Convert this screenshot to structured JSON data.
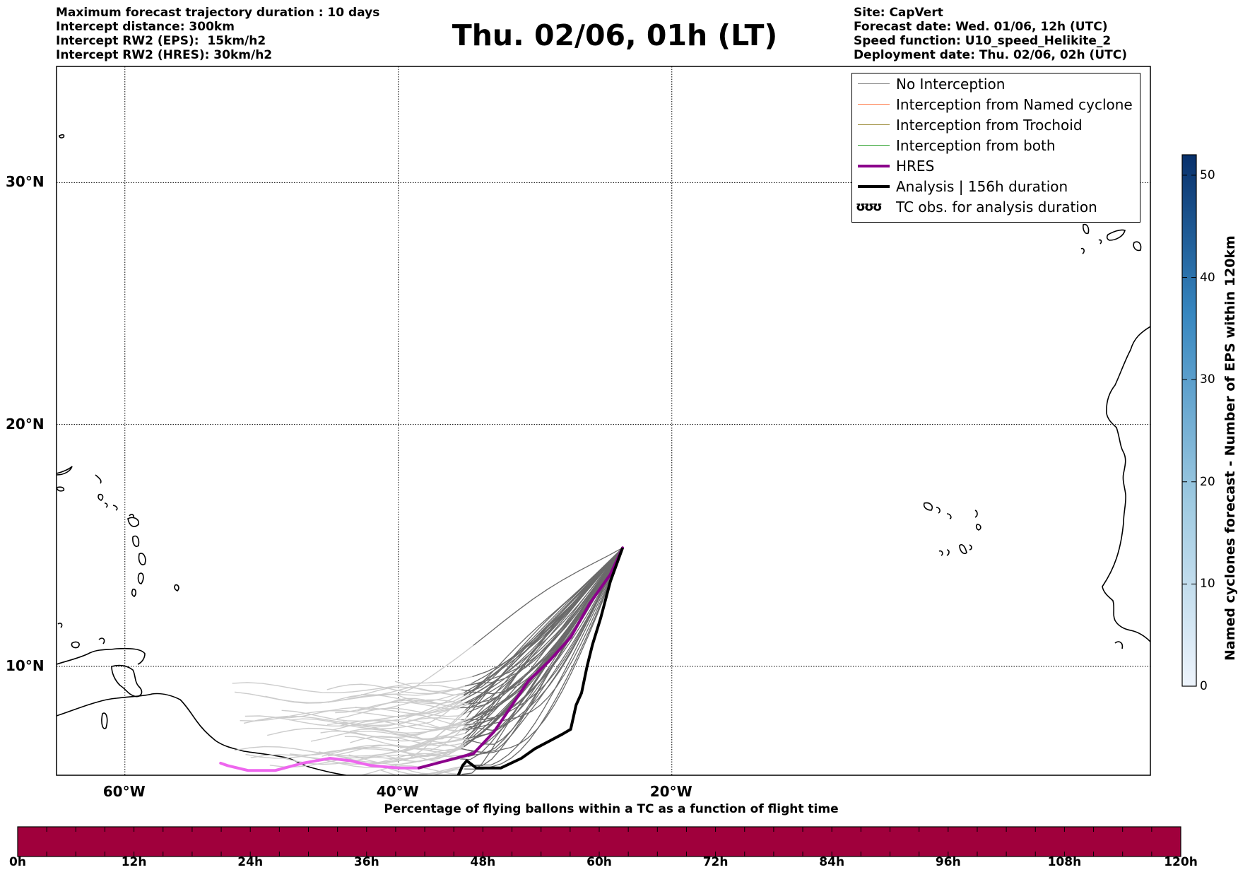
{
  "header": {
    "left": [
      "Maximum forecast trajectory duration : 10 days",
      "Intercept distance: 300km",
      "Intercept RW2 (EPS):  15km/h2",
      "Intercept RW2 (HRES): 30km/h2"
    ],
    "right": [
      "Site: CapVert",
      "Forecast date: Wed. 01/06, 12h (UTC)",
      "Speed function: U10_speed_Helikite_2",
      "Deployment date: Thu. 02/06, 02h (UTC)"
    ],
    "title": "Thu. 02/06, 01h (LT)"
  },
  "map": {
    "lon_range": [
      -65,
      15
    ],
    "lat_range": [
      5.5,
      34.8
    ],
    "lat_ticks": [
      {
        "value": 30,
        "label": "30°N"
      },
      {
        "value": 20,
        "label": "20°N"
      },
      {
        "value": 10,
        "label": "10°N"
      }
    ],
    "lon_ticks": [
      {
        "value": -60,
        "label": "60°W"
      },
      {
        "value": -40,
        "label": "40°W"
      },
      {
        "value": -20,
        "label": "20°W"
      }
    ],
    "grid": true
  },
  "legend": {
    "items": [
      {
        "label": "No Interception",
        "color": "#808080"
      },
      {
        "label": "Interception from Named cyclone",
        "color": "#ff7f50"
      },
      {
        "label": "Interception from Trochoid",
        "color": "#9b8a36"
      },
      {
        "label": "Interception from both",
        "color": "#2ca02c"
      },
      {
        "label": "HRES",
        "color": "#8b008b"
      },
      {
        "label": "Analysis | 156h duration",
        "color": "#000000"
      },
      {
        "label": "TC obs. for analysis duration",
        "glyph": "ʊʊʊ"
      }
    ]
  },
  "trajectories": {
    "origin": [
      -23.6,
      14.9
    ],
    "hres": [
      [
        -23.6,
        14.9
      ],
      [
        -24.5,
        13.8
      ],
      [
        -26,
        12.6
      ],
      [
        -27.4,
        11.2
      ],
      [
        -29,
        10.2
      ],
      [
        -30.5,
        9.4
      ],
      [
        -31.8,
        8.3
      ],
      [
        -33,
        7.3
      ],
      [
        -34.5,
        6.4
      ],
      [
        -36.5,
        6.1
      ],
      [
        -38.5,
        5.8
      ],
      [
        -40,
        5.8
      ],
      [
        -42,
        5.9
      ],
      [
        -43.5,
        6.1
      ],
      [
        -45,
        6.2
      ],
      [
        -47,
        6
      ],
      [
        -49,
        5.7
      ],
      [
        -51,
        5.7
      ],
      [
        -52.5,
        5.9
      ],
      [
        -53,
        6
      ]
    ],
    "analysis": [
      [
        -23.6,
        14.9
      ],
      [
        -24.5,
        13.5
      ],
      [
        -25.2,
        12
      ],
      [
        -25.8,
        10.9
      ],
      [
        -26.2,
        10
      ],
      [
        -26.6,
        8.9
      ],
      [
        -27,
        8.4
      ],
      [
        -27.4,
        7.4
      ],
      [
        -28,
        7.2
      ],
      [
        -29,
        6.9
      ],
      [
        -30,
        6.6
      ],
      [
        -31,
        6.2
      ],
      [
        -32.5,
        5.8
      ],
      [
        -33.5,
        5.8
      ],
      [
        -34.3,
        5.8
      ],
      [
        -35,
        6.1
      ],
      [
        -35.3,
        5.9
      ],
      [
        -35.7,
        5.4
      ]
    ],
    "eps_color_near": "#6a6a6a",
    "eps_color_far": "#cccccc",
    "hres_color_far": "#ee66ee"
  },
  "bottom_colorbar": {
    "title": "Percentage of flying ballons within a TC as a function of flight time",
    "color": "#a0003c",
    "ticks": [
      "0h",
      "12h",
      "24h",
      "36h",
      "48h",
      "60h",
      "72h",
      "84h",
      "96h",
      "108h",
      "120h"
    ]
  },
  "right_colorbar": {
    "title": "Named cyclones forecast - Number of EPS within 120km",
    "range": [
      0,
      52
    ],
    "ticks": [
      0,
      10,
      20,
      30,
      40,
      50
    ],
    "color_low": "#e8f1fb",
    "color_high": "#08306b"
  }
}
